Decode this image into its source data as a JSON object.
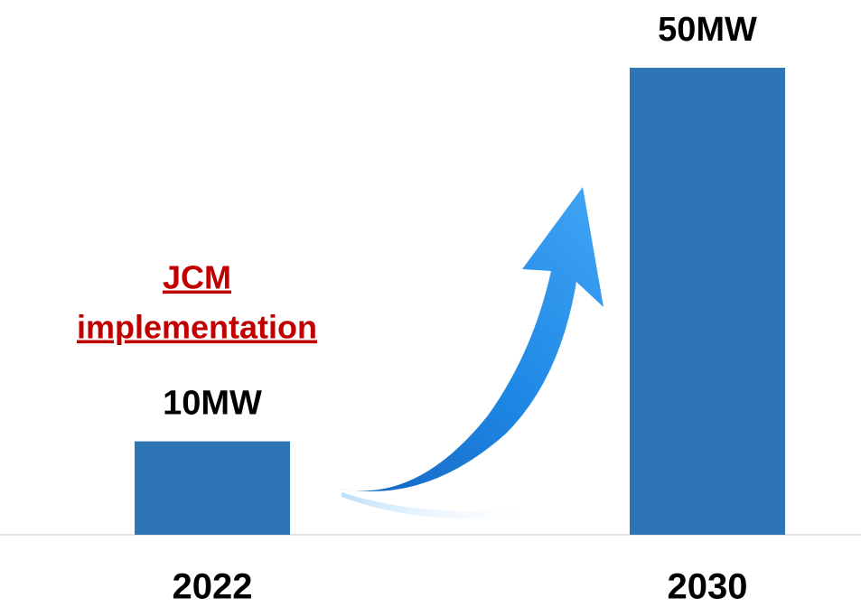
{
  "chart_data": {
    "type": "bar",
    "categories": [
      "2022",
      "2030"
    ],
    "values": [
      10,
      50
    ],
    "value_labels": [
      "10MW",
      "50MW"
    ],
    "color": "#2e75b6",
    "annotations": [
      "JCM",
      "implementation"
    ],
    "annotation_color": "#c00000"
  }
}
